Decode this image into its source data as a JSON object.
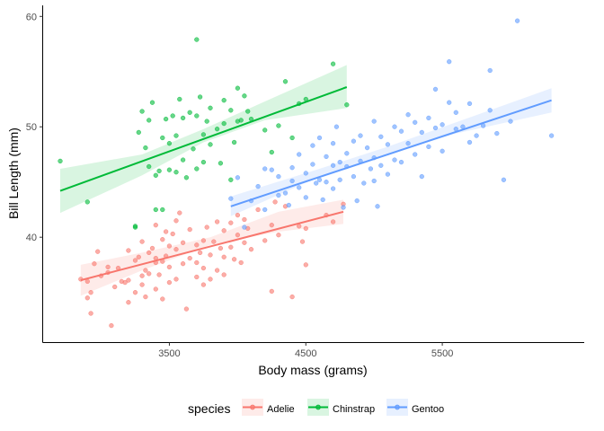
{
  "chart_data": {
    "type": "scatter",
    "title": "",
    "xlabel": "Body mass (grams)",
    "ylabel": "Bill Length (mm)",
    "xlim": [
      2575,
      6540
    ],
    "ylim": [
      30.5,
      61
    ],
    "x_ticks": [
      3500,
      4500,
      5500
    ],
    "y_ticks": [
      40,
      50,
      60
    ],
    "grid": false,
    "legend": {
      "title": "species",
      "position": "bottom"
    },
    "series": [
      {
        "name": "Adelie",
        "color": "#F8766D",
        "points": [
          [
            2850,
            36.2
          ],
          [
            2900,
            36.0
          ],
          [
            2900,
            34.5
          ],
          [
            2925,
            33.1
          ],
          [
            2925,
            35.0
          ],
          [
            2950,
            37.6
          ],
          [
            2975,
            38.7
          ],
          [
            3000,
            36.5
          ],
          [
            3050,
            37.3
          ],
          [
            3050,
            36.8
          ],
          [
            3075,
            32.0
          ],
          [
            3100,
            35.5
          ],
          [
            3125,
            37.2
          ],
          [
            3150,
            36.0
          ],
          [
            3175,
            35.9
          ],
          [
            3200,
            38.8
          ],
          [
            3200,
            36.1
          ],
          [
            3200,
            34.1
          ],
          [
            3250,
            37.9
          ],
          [
            3250,
            35.0
          ],
          [
            3275,
            38.2
          ],
          [
            3300,
            36.5
          ],
          [
            3300,
            39.6
          ],
          [
            3300,
            35.7
          ],
          [
            3325,
            37.0
          ],
          [
            3325,
            34.6
          ],
          [
            3350,
            38.6
          ],
          [
            3350,
            36.7
          ],
          [
            3375,
            39.0
          ],
          [
            3400,
            37.7
          ],
          [
            3400,
            41.1
          ],
          [
            3400,
            35.3
          ],
          [
            3400,
            38.1
          ],
          [
            3425,
            36.6
          ],
          [
            3450,
            39.8
          ],
          [
            3450,
            37.8
          ],
          [
            3450,
            34.4
          ],
          [
            3475,
            40.5
          ],
          [
            3475,
            38.3
          ],
          [
            3500,
            35.9
          ],
          [
            3500,
            39.2
          ],
          [
            3500,
            37.3
          ],
          [
            3525,
            40.3
          ],
          [
            3550,
            41.5
          ],
          [
            3550,
            38.9
          ],
          [
            3550,
            36.2
          ],
          [
            3575,
            42.2
          ],
          [
            3600,
            37.6
          ],
          [
            3600,
            39.5
          ],
          [
            3625,
            33.5
          ],
          [
            3650,
            38.1
          ],
          [
            3650,
            40.7
          ],
          [
            3700,
            36.4
          ],
          [
            3700,
            39.3
          ],
          [
            3700,
            37.7
          ],
          [
            3725,
            38.6
          ],
          [
            3750,
            35.7
          ],
          [
            3750,
            39.7
          ],
          [
            3750,
            37.2
          ],
          [
            3775,
            40.9
          ],
          [
            3800,
            38.4
          ],
          [
            3800,
            36.2
          ],
          [
            3825,
            39.6
          ],
          [
            3850,
            41.4
          ],
          [
            3850,
            37.0
          ],
          [
            3875,
            39.0
          ],
          [
            3900,
            38.2
          ],
          [
            3900,
            40.6
          ],
          [
            3900,
            36.6
          ],
          [
            3950,
            39.1
          ],
          [
            3950,
            41.3
          ],
          [
            3975,
            38.0
          ],
          [
            4000,
            40.2
          ],
          [
            4000,
            42.0
          ],
          [
            4025,
            37.7
          ],
          [
            4050,
            39.5
          ],
          [
            4050,
            41.6
          ],
          [
            4075,
            40.8
          ],
          [
            4100,
            38.9
          ],
          [
            4150,
            42.5
          ],
          [
            4200,
            39.7
          ],
          [
            4250,
            41.1
          ],
          [
            4250,
            35.1
          ],
          [
            4275,
            43.2
          ],
          [
            4300,
            40.2
          ],
          [
            4350,
            42.8
          ],
          [
            4400,
            34.6
          ],
          [
            4450,
            41.0
          ],
          [
            4475,
            39.6
          ],
          [
            4500,
            40.8
          ],
          [
            4500,
            37.5
          ],
          [
            4650,
            42.0
          ],
          [
            4700,
            41.4
          ],
          [
            4775,
            43.0
          ]
        ],
        "fit_line": [
          [
            2850,
            36.1
          ],
          [
            4775,
            42.3
          ]
        ],
        "fit_band": [
          [
            2850,
            34.7,
            37.5
          ],
          [
            3300,
            37.0,
            38.6
          ],
          [
            3800,
            39.3,
            40.0
          ],
          [
            4300,
            40.5,
            42.3
          ],
          [
            4775,
            41.2,
            43.4
          ]
        ]
      },
      {
        "name": "Chinstrap",
        "color": "#00BA38",
        "points": [
          [
            2700,
            46.9
          ],
          [
            2900,
            43.2
          ],
          [
            3250,
            40.9
          ],
          [
            3250,
            41.0
          ],
          [
            3275,
            49.5
          ],
          [
            3300,
            51.4
          ],
          [
            3325,
            48.1
          ],
          [
            3350,
            50.6
          ],
          [
            3350,
            46.4
          ],
          [
            3375,
            52.2
          ],
          [
            3400,
            42.5
          ],
          [
            3400,
            45.6
          ],
          [
            3425,
            46.0
          ],
          [
            3450,
            49.0
          ],
          [
            3450,
            42.5
          ],
          [
            3475,
            50.7
          ],
          [
            3500,
            46.1
          ],
          [
            3500,
            48.5
          ],
          [
            3525,
            51.0
          ],
          [
            3550,
            45.9
          ],
          [
            3550,
            49.2
          ],
          [
            3575,
            52.5
          ],
          [
            3600,
            47.0
          ],
          [
            3600,
            50.8
          ],
          [
            3625,
            45.4
          ],
          [
            3650,
            51.3
          ],
          [
            3675,
            48.0
          ],
          [
            3700,
            46.2
          ],
          [
            3700,
            51.0
          ],
          [
            3700,
            57.9
          ],
          [
            3725,
            52.7
          ],
          [
            3750,
            49.3
          ],
          [
            3750,
            46.8
          ],
          [
            3775,
            50.5
          ],
          [
            3800,
            48.4
          ],
          [
            3800,
            51.7
          ],
          [
            3850,
            49.8
          ],
          [
            3875,
            46.7
          ],
          [
            3900,
            50.3
          ],
          [
            3900,
            52.4
          ],
          [
            3950,
            45.2
          ],
          [
            3950,
            51.5
          ],
          [
            3975,
            48.6
          ],
          [
            4000,
            50.5
          ],
          [
            4000,
            53.5
          ],
          [
            4025,
            50.6
          ],
          [
            4050,
            52.8
          ],
          [
            4075,
            51.4
          ],
          [
            4100,
            50.7
          ],
          [
            4200,
            49.7
          ],
          [
            4250,
            47.7
          ],
          [
            4300,
            50.1
          ],
          [
            4350,
            54.1
          ],
          [
            4400,
            49.0
          ],
          [
            4450,
            52.1
          ],
          [
            4500,
            52.5
          ],
          [
            4700,
            55.7
          ],
          [
            4800,
            52.0
          ]
        ],
        "fit_line": [
          [
            2700,
            44.2
          ],
          [
            4800,
            53.6
          ]
        ],
        "fit_band": [
          [
            2700,
            42.2,
            46.2
          ],
          [
            3300,
            45.6,
            47.5
          ],
          [
            3750,
            48.6,
            49.8
          ],
          [
            4200,
            50.6,
            52.3
          ],
          [
            4800,
            51.7,
            55.6
          ]
        ]
      },
      {
        "name": "Gentoo",
        "color": "#619CFF",
        "points": [
          [
            3950,
            43.5
          ],
          [
            4000,
            45.4
          ],
          [
            4050,
            40.9
          ],
          [
            4100,
            43.3
          ],
          [
            4150,
            44.6
          ],
          [
            4200,
            46.2
          ],
          [
            4200,
            42.5
          ],
          [
            4250,
            46.1
          ],
          [
            4300,
            43.8
          ],
          [
            4300,
            45.5
          ],
          [
            4350,
            44.0
          ],
          [
            4375,
            42.9
          ],
          [
            4400,
            46.3
          ],
          [
            4400,
            45.1
          ],
          [
            4450,
            47.5
          ],
          [
            4450,
            44.5
          ],
          [
            4500,
            45.8
          ],
          [
            4500,
            43.6
          ],
          [
            4550,
            48.3
          ],
          [
            4550,
            46.6
          ],
          [
            4575,
            44.9
          ],
          [
            4600,
            49.0
          ],
          [
            4600,
            45.2
          ],
          [
            4625,
            43.4
          ],
          [
            4650,
            47.3
          ],
          [
            4650,
            45.0
          ],
          [
            4700,
            48.5
          ],
          [
            4700,
            46.5
          ],
          [
            4700,
            44.4
          ],
          [
            4725,
            50.0
          ],
          [
            4750,
            46.8
          ],
          [
            4750,
            45.2
          ],
          [
            4775,
            42.7
          ],
          [
            4800,
            47.6
          ],
          [
            4800,
            46.4
          ],
          [
            4850,
            48.7
          ],
          [
            4850,
            45.5
          ],
          [
            4875,
            43.3
          ],
          [
            4900,
            49.2
          ],
          [
            4900,
            46.9
          ],
          [
            4925,
            44.9
          ],
          [
            4950,
            48.1
          ],
          [
            4975,
            46.2
          ],
          [
            5000,
            50.5
          ],
          [
            5000,
            47.2
          ],
          [
            5000,
            45.1
          ],
          [
            5025,
            42.8
          ],
          [
            5050,
            49.1
          ],
          [
            5050,
            46.5
          ],
          [
            5100,
            48.4
          ],
          [
            5100,
            45.7
          ],
          [
            5150,
            50.0
          ],
          [
            5150,
            47.0
          ],
          [
            5200,
            49.6
          ],
          [
            5200,
            46.8
          ],
          [
            5250,
            51.1
          ],
          [
            5250,
            48.5
          ],
          [
            5300,
            47.5
          ],
          [
            5300,
            50.4
          ],
          [
            5350,
            45.5
          ],
          [
            5350,
            49.5
          ],
          [
            5400,
            50.8
          ],
          [
            5400,
            48.2
          ],
          [
            5450,
            53.4
          ],
          [
            5450,
            49.9
          ],
          [
            5500,
            50.2
          ],
          [
            5500,
            47.8
          ],
          [
            5550,
            55.9
          ],
          [
            5550,
            52.2
          ],
          [
            5600,
            49.8
          ],
          [
            5600,
            51.3
          ],
          [
            5650,
            50.0
          ],
          [
            5700,
            52.1
          ],
          [
            5700,
            48.6
          ],
          [
            5750,
            49.2
          ],
          [
            5800,
            50.1
          ],
          [
            5850,
            55.1
          ],
          [
            5850,
            51.5
          ],
          [
            5900,
            49.4
          ],
          [
            5950,
            45.2
          ],
          [
            6000,
            50.5
          ],
          [
            6050,
            59.6
          ],
          [
            6300,
            49.2
          ]
        ],
        "fit_line": [
          [
            3950,
            42.8
          ],
          [
            6300,
            52.4
          ]
        ],
        "fit_band": [
          [
            3950,
            41.9,
            43.7
          ],
          [
            4600,
            45.5,
            46.2
          ],
          [
            5100,
            47.6,
            48.2
          ],
          [
            5600,
            49.4,
            50.4
          ],
          [
            6300,
            51.3,
            53.5
          ]
        ]
      }
    ]
  }
}
